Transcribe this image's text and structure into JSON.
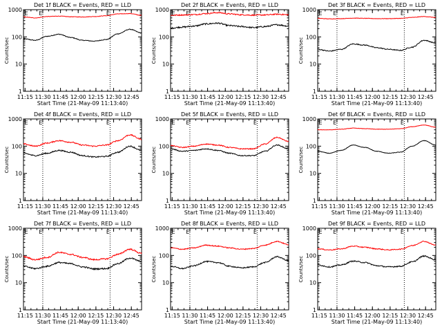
{
  "figure": {
    "start_time_label": "Start Time (21-May-09 11:13:40)",
    "ylabel": "Counts/sec",
    "edge_marker": "E",
    "background": "#ffffff"
  },
  "chart_data": [
    {
      "type": "line",
      "title": "Det 1f BLACK = Events, RED = LLD",
      "xlabel": "Start Time (21-May-09 11:13:40)",
      "ylabel": "Counts/sec",
      "yscale": "log",
      "ylim": [
        1,
        1000
      ],
      "xlim_minutes": [
        0,
        100
      ],
      "x_ticks": [
        "11:15",
        "11:30",
        "11:45",
        "12:00",
        "12:15",
        "12:30",
        "12:45"
      ],
      "y_ticks": [
        "1",
        "10",
        "100",
        "1000"
      ],
      "vlines": [
        "11:30",
        "12:27"
      ],
      "markers": [
        "E",
        "E"
      ],
      "grid": false,
      "legend": "none",
      "series": [
        {
          "color": "#000000",
          "x": [
            0,
            10,
            20,
            30,
            40,
            50,
            60,
            70,
            80,
            90,
            100
          ],
          "values": [
            85,
            75,
            105,
            125,
            95,
            75,
            70,
            80,
            130,
            190,
            140
          ],
          "noise": 0.03
        },
        {
          "color": "#ff0000",
          "x": [
            0,
            10,
            20,
            30,
            40,
            50,
            60,
            70,
            80,
            90,
            100
          ],
          "values": [
            540,
            500,
            560,
            580,
            550,
            540,
            560,
            600,
            700,
            720,
            620
          ],
          "noise": 0.02
        }
      ]
    },
    {
      "type": "line",
      "title": "Det 2f BLACK = Events, RED = LLD",
      "xlabel": "Start Time (21-May-09 11:13:40)",
      "ylabel": "Counts/sec",
      "yscale": "log",
      "ylim": [
        1,
        1000
      ],
      "xlim_minutes": [
        0,
        100
      ],
      "x_ticks": [
        "11:15",
        "11:30",
        "11:45",
        "12:00",
        "12:15",
        "12:30",
        "12:45"
      ],
      "y_ticks": [
        "1",
        "10",
        "100",
        "1000"
      ],
      "vlines": [
        "11:30",
        "12:27"
      ],
      "markers": [
        "E",
        "E"
      ],
      "grid": false,
      "legend": "none",
      "series": [
        {
          "color": "#000000",
          "x": [
            0,
            10,
            20,
            30,
            40,
            50,
            60,
            70,
            80,
            90,
            100
          ],
          "values": [
            210,
            230,
            250,
            300,
            320,
            260,
            240,
            220,
            240,
            280,
            250
          ],
          "noise": 0.06
        },
        {
          "color": "#ff0000",
          "x": [
            0,
            10,
            20,
            30,
            40,
            50,
            60,
            70,
            80,
            90,
            100
          ],
          "values": [
            620,
            640,
            660,
            720,
            780,
            700,
            650,
            630,
            640,
            680,
            650
          ],
          "noise": 0.05
        }
      ]
    },
    {
      "type": "line",
      "title": "Det 3f BLACK = Events, RED = LLD",
      "xlabel": "Start Time (21-May-09 11:13:40)",
      "ylabel": "Counts/sec",
      "yscale": "log",
      "ylim": [
        1,
        1000
      ],
      "xlim_minutes": [
        0,
        100
      ],
      "x_ticks": [
        "11:15",
        "11:30",
        "11:45",
        "12:00",
        "12:15",
        "12:30",
        "12:45"
      ],
      "y_ticks": [
        "1",
        "10",
        "100",
        "1000"
      ],
      "vlines": [
        "11:30",
        "12:27"
      ],
      "markers": [
        "E",
        "E"
      ],
      "grid": false,
      "legend": "none",
      "series": [
        {
          "color": "#000000",
          "x": [
            0,
            10,
            20,
            30,
            40,
            50,
            60,
            70,
            80,
            90,
            100
          ],
          "values": [
            35,
            30,
            35,
            55,
            50,
            40,
            35,
            32,
            42,
            75,
            60
          ],
          "noise": 0.04
        },
        {
          "color": "#ff0000",
          "x": [
            0,
            10,
            20,
            30,
            40,
            50,
            60,
            70,
            80,
            90,
            100
          ],
          "values": [
            480,
            460,
            470,
            490,
            480,
            470,
            470,
            480,
            520,
            560,
            520
          ],
          "noise": 0.02
        }
      ]
    },
    {
      "type": "line",
      "title": "Det 4f BLACK = Events, RED = LLD",
      "xlabel": "Start Time (21-May-09 11:13:40)",
      "ylabel": "Counts/sec",
      "yscale": "log",
      "ylim": [
        1,
        1000
      ],
      "xlim_minutes": [
        0,
        100
      ],
      "x_ticks": [
        "11:15",
        "11:30",
        "11:45",
        "12:00",
        "12:15",
        "12:30",
        "12:45"
      ],
      "y_ticks": [
        "1",
        "10",
        "100",
        "1000"
      ],
      "vlines": [
        "11:30",
        "12:27"
      ],
      "markers": [
        "E",
        "E"
      ],
      "grid": false,
      "legend": "none",
      "series": [
        {
          "color": "#000000",
          "x": [
            0,
            10,
            20,
            30,
            40,
            50,
            60,
            70,
            80,
            90,
            100
          ],
          "values": [
            55,
            45,
            55,
            70,
            60,
            45,
            40,
            42,
            60,
            100,
            70
          ],
          "noise": 0.05
        },
        {
          "color": "#ff0000",
          "x": [
            0,
            10,
            20,
            30,
            40,
            50,
            60,
            70,
            80,
            90,
            100
          ],
          "values": [
            120,
            100,
            130,
            160,
            140,
            110,
            100,
            110,
            160,
            260,
            180
          ],
          "noise": 0.05
        }
      ]
    },
    {
      "type": "line",
      "title": "Det 5f BLACK = Events, RED = LLD",
      "xlabel": "Start Time (21-May-09 11:13:40)",
      "ylabel": "Counts/sec",
      "yscale": "log",
      "ylim": [
        1,
        1000
      ],
      "xlim_minutes": [
        0,
        100
      ],
      "x_ticks": [
        "11:15",
        "11:30",
        "11:45",
        "12:00",
        "12:15",
        "12:30",
        "12:45"
      ],
      "y_ticks": [
        "1",
        "10",
        "100",
        "1000"
      ],
      "vlines": [
        "11:30",
        "12:27"
      ],
      "markers": [
        "E",
        "E"
      ],
      "grid": false,
      "legend": "none",
      "series": [
        {
          "color": "#000000",
          "x": [
            0,
            10,
            20,
            30,
            40,
            50,
            60,
            70,
            80,
            90,
            100
          ],
          "values": [
            80,
            65,
            70,
            80,
            70,
            55,
            45,
            45,
            65,
            110,
            80
          ],
          "noise": 0.04
        },
        {
          "color": "#ff0000",
          "x": [
            0,
            10,
            20,
            30,
            40,
            50,
            60,
            70,
            80,
            90,
            100
          ],
          "values": [
            105,
            90,
            100,
            120,
            110,
            90,
            80,
            80,
            120,
            210,
            150
          ],
          "noise": 0.04
        }
      ]
    },
    {
      "type": "line",
      "title": "Det 6f BLACK = Events, RED = LLD",
      "xlabel": "Start Time (21-May-09 11:13:40)",
      "ylabel": "Counts/sec",
      "yscale": "log",
      "ylim": [
        1,
        1000
      ],
      "xlim_minutes": [
        0,
        100
      ],
      "x_ticks": [
        "11:15",
        "11:30",
        "11:45",
        "12:00",
        "12:15",
        "12:30",
        "12:45"
      ],
      "y_ticks": [
        "1",
        "10",
        "100",
        "1000"
      ],
      "vlines": [
        "11:30",
        "12:27"
      ],
      "markers": [
        "E",
        "E"
      ],
      "grid": false,
      "legend": "none",
      "series": [
        {
          "color": "#000000",
          "x": [
            0,
            10,
            20,
            30,
            40,
            50,
            60,
            70,
            80,
            90,
            100
          ],
          "values": [
            65,
            55,
            70,
            110,
            90,
            65,
            55,
            60,
            100,
            160,
            110
          ],
          "noise": 0.02
        },
        {
          "color": "#ff0000",
          "x": [
            0,
            10,
            20,
            30,
            40,
            50,
            60,
            70,
            80,
            90,
            100
          ],
          "values": [
            400,
            400,
            420,
            460,
            440,
            420,
            420,
            440,
            520,
            600,
            500
          ],
          "noise": 0.015
        }
      ]
    },
    {
      "type": "line",
      "title": "Det 7f BLACK = Events, RED = LLD",
      "xlabel": "Start Time (21-May-09 11:13:40)",
      "ylabel": "Counts/sec",
      "yscale": "log",
      "ylim": [
        1,
        1000
      ],
      "xlim_minutes": [
        0,
        100
      ],
      "x_ticks": [
        "11:15",
        "11:30",
        "11:45",
        "12:00",
        "12:15",
        "12:30",
        "12:45"
      ],
      "y_ticks": [
        "1",
        "10",
        "100",
        "1000"
      ],
      "vlines": [
        "11:30",
        "12:27"
      ],
      "markers": [
        "E",
        "E"
      ],
      "grid": false,
      "legend": "none",
      "series": [
        {
          "color": "#000000",
          "x": [
            0,
            10,
            20,
            30,
            40,
            50,
            60,
            70,
            80,
            90,
            100
          ],
          "values": [
            40,
            33,
            40,
            55,
            50,
            38,
            32,
            33,
            50,
            80,
            60
          ],
          "noise": 0.06
        },
        {
          "color": "#ff0000",
          "x": [
            0,
            10,
            20,
            30,
            40,
            50,
            60,
            70,
            80,
            90,
            100
          ],
          "values": [
            90,
            70,
            85,
            130,
            110,
            85,
            70,
            75,
            110,
            170,
            120
          ],
          "noise": 0.06
        }
      ]
    },
    {
      "type": "line",
      "title": "Det 8f BLACK = Events, RED = LLD",
      "xlabel": "Start Time (21-May-09 11:13:40)",
      "ylabel": "Counts/sec",
      "yscale": "log",
      "ylim": [
        1,
        1000
      ],
      "xlim_minutes": [
        0,
        100
      ],
      "x_ticks": [
        "11:15",
        "11:30",
        "11:45",
        "12:00",
        "12:15",
        "12:30",
        "12:45"
      ],
      "y_ticks": [
        "1",
        "10",
        "100",
        "1000"
      ],
      "vlines": [
        "11:30",
        "12:27"
      ],
      "markers": [
        "E",
        "E"
      ],
      "grid": false,
      "legend": "none",
      "series": [
        {
          "color": "#000000",
          "x": [
            0,
            10,
            20,
            30,
            40,
            50,
            60,
            70,
            80,
            90,
            100
          ],
          "values": [
            40,
            33,
            42,
            60,
            55,
            40,
            35,
            38,
            55,
            90,
            65
          ],
          "noise": 0.05
        },
        {
          "color": "#ff0000",
          "x": [
            0,
            10,
            20,
            30,
            40,
            50,
            60,
            70,
            80,
            90,
            100
          ],
          "values": [
            190,
            170,
            190,
            240,
            220,
            190,
            170,
            180,
            240,
            330,
            250
          ],
          "noise": 0.04
        }
      ]
    },
    {
      "type": "line",
      "title": "Det 9f BLACK = Events, RED = LLD",
      "xlabel": "Start Time (21-May-09 11:13:40)",
      "ylabel": "Counts/sec",
      "yscale": "log",
      "ylim": [
        1,
        1000
      ],
      "xlim_minutes": [
        0,
        100
      ],
      "x_ticks": [
        "11:15",
        "11:30",
        "11:45",
        "12:00",
        "12:15",
        "12:30",
        "12:45"
      ],
      "y_ticks": [
        "1",
        "10",
        "100",
        "1000"
      ],
      "vlines": [
        "11:30",
        "12:27"
      ],
      "markers": [
        "E",
        "E"
      ],
      "grid": false,
      "legend": "none",
      "series": [
        {
          "color": "#000000",
          "x": [
            0,
            10,
            20,
            30,
            40,
            50,
            60,
            70,
            80,
            90,
            100
          ],
          "values": [
            45,
            38,
            45,
            62,
            55,
            42,
            38,
            40,
            58,
            95,
            70
          ],
          "noise": 0.05
        },
        {
          "color": "#ff0000",
          "x": [
            0,
            10,
            20,
            30,
            40,
            50,
            60,
            70,
            80,
            90,
            100
          ],
          "values": [
            175,
            160,
            175,
            220,
            200,
            175,
            160,
            170,
            230,
            330,
            240
          ],
          "noise": 0.04
        }
      ]
    }
  ]
}
